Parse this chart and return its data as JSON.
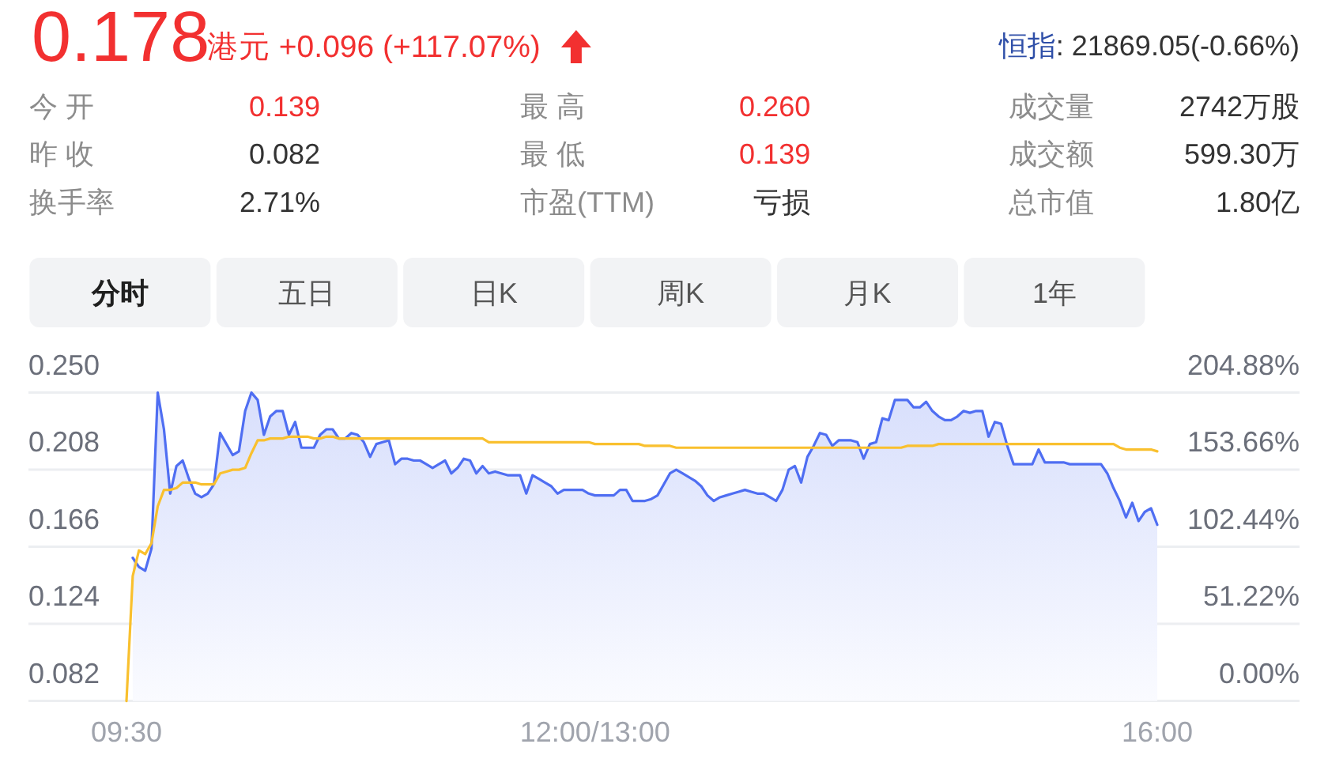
{
  "chart_data": {
    "type": "area",
    "title": "0.178",
    "subtitle": "港元 +0.096 (+117.07%)",
    "annotations": [
      "恒指",
      ": 21869.05(-0.66%)",
      "今 开",
      "0.139",
      "最 高",
      "0.260",
      "成交量",
      "2742万股",
      "昨 收",
      "0.082",
      "最 低",
      "0.139",
      "成交额",
      "599.30万",
      "换手率",
      "2.71%",
      "市盈(TTM)",
      "亏损",
      "总市值",
      "1.80亿",
      "分时",
      "五日",
      "日K",
      "周K",
      "月K",
      "1年"
    ],
    "categories": [
      "09:30",
      null,
      null,
      null,
      null,
      null,
      null,
      null,
      null,
      null,
      null,
      null,
      null,
      null,
      null,
      null,
      null,
      null,
      null,
      null,
      null,
      null,
      null,
      null,
      null,
      null,
      null,
      null,
      null,
      null,
      null,
      null,
      null,
      null,
      null,
      null,
      null,
      null,
      null,
      null,
      null,
      null,
      null,
      null,
      null,
      null,
      null,
      null,
      null,
      null,
      null,
      null,
      null,
      null,
      null,
      null,
      null,
      null,
      null,
      null,
      null,
      null,
      null,
      null,
      null,
      null,
      null,
      null,
      null,
      null,
      null,
      null,
      null,
      null,
      null,
      "12:00/13:00",
      null,
      null,
      null,
      null,
      null,
      null,
      null,
      null,
      null,
      null,
      null,
      null,
      null,
      null,
      null,
      null,
      null,
      null,
      null,
      null,
      null,
      null,
      null,
      null,
      null,
      null,
      null,
      null,
      null,
      null,
      null,
      null,
      null,
      null,
      null,
      null,
      null,
      null,
      null,
      null,
      null,
      null,
      null,
      null,
      null,
      null,
      null,
      null,
      null,
      null,
      null,
      null,
      null,
      null,
      null,
      null,
      null,
      null,
      null,
      null,
      null,
      null,
      null,
      null,
      null,
      null,
      null,
      null,
      null,
      null,
      null,
      null,
      null,
      null,
      null,
      null,
      null,
      null,
      null,
      null,
      null,
      null,
      null,
      null,
      null,
      null,
      null,
      null,
      null,
      "16:00"
    ],
    "ylim": [
      0.082,
      0.25
    ],
    "yticks": [
      {
        "value": 0.082,
        "label": "0.082"
      },
      {
        "value": 0.124,
        "label": "0.124"
      },
      {
        "value": 0.166,
        "label": "0.166"
      },
      {
        "value": 0.208,
        "label": "0.208"
      },
      {
        "value": 0.25,
        "label": "0.250"
      }
    ],
    "y2lim": [
      0,
      204.88
    ],
    "y2ticks": [
      {
        "value": 0,
        "label": "0.00%"
      },
      {
        "value": 51.22,
        "label": "51.22%"
      },
      {
        "value": 102.44,
        "label": "102.44%"
      },
      {
        "value": 153.66,
        "label": "153.66%"
      },
      {
        "value": 204.88,
        "label": "204.88%"
      }
    ],
    "grid": "y",
    "series": [
      {
        "color": "#4f6ef2",
        "values": [
          null,
          0.16,
          0.155,
          0.153,
          0.165,
          0.25,
          0.23,
          0.195,
          0.21,
          0.213,
          0.203,
          0.195,
          0.193,
          0.195,
          0.2,
          0.228,
          0.222,
          0.216,
          0.218,
          0.24,
          0.25,
          0.246,
          0.227,
          0.237,
          0.24,
          0.24,
          0.227,
          0.234,
          0.22,
          0.22,
          0.22,
          0.227,
          0.23,
          0.23,
          0.225,
          0.225,
          0.228,
          0.227,
          0.223,
          0.215,
          0.222,
          0.223,
          0.224,
          0.211,
          0.214,
          0.214,
          0.213,
          0.213,
          0.211,
          0.209,
          0.211,
          0.213,
          0.206,
          0.209,
          0.214,
          0.213,
          0.206,
          0.21,
          0.206,
          0.207,
          0.206,
          0.205,
          0.205,
          0.205,
          0.195,
          0.205,
          0.203,
          0.201,
          0.199,
          0.195,
          0.197,
          0.197,
          0.197,
          0.197,
          0.195,
          0.194,
          0.194,
          0.194,
          0.194,
          0.197,
          0.197,
          0.191,
          0.191,
          0.191,
          0.192,
          0.194,
          0.2,
          0.206,
          0.208,
          0.206,
          0.204,
          0.202,
          0.199,
          0.194,
          0.191,
          0.193,
          0.194,
          0.195,
          0.196,
          0.197,
          0.196,
          0.195,
          0.195,
          0.193,
          0.191,
          0.197,
          0.208,
          0.21,
          0.201,
          0.215,
          0.221,
          0.228,
          0.227,
          0.221,
          0.224,
          0.224,
          0.224,
          0.223,
          0.214,
          0.222,
          0.223,
          0.236,
          0.235,
          0.246,
          0.246,
          0.246,
          0.242,
          0.242,
          0.245,
          0.24,
          0.237,
          0.235,
          0.235,
          0.237,
          0.24,
          0.239,
          0.24,
          0.24,
          0.226,
          0.234,
          0.233,
          0.221,
          0.211,
          0.211,
          0.211,
          0.211,
          0.219,
          0.212,
          0.212,
          0.212,
          0.212,
          0.211,
          0.211,
          0.211,
          0.211,
          0.211,
          0.211,
          0.206,
          0.198,
          0.191,
          0.182,
          0.19,
          0.18,
          0.185,
          0.187,
          0.178
        ]
      },
      {
        "type": "line",
        "color": "#f9c02e",
        "values": [
          0.082,
          0.15,
          0.164,
          0.162,
          0.168,
          0.188,
          0.197,
          0.197,
          0.198,
          0.201,
          0.201,
          0.201,
          0.2,
          0.2,
          0.2,
          0.206,
          0.207,
          0.208,
          0.208,
          0.209,
          0.217,
          0.224,
          0.224,
          0.225,
          0.225,
          0.225,
          0.226,
          0.226,
          0.226,
          0.226,
          0.225,
          0.225,
          0.226,
          0.226,
          0.225,
          0.225,
          0.225,
          0.225,
          0.225,
          0.225,
          0.225,
          0.225,
          0.225,
          0.225,
          0.225,
          0.225,
          0.225,
          0.225,
          0.225,
          0.225,
          0.225,
          0.225,
          0.225,
          0.225,
          0.225,
          0.225,
          0.225,
          0.225,
          0.223,
          0.223,
          0.223,
          0.223,
          0.223,
          0.223,
          0.223,
          0.223,
          0.223,
          0.223,
          0.223,
          0.223,
          0.223,
          0.223,
          0.223,
          0.223,
          0.223,
          0.222,
          0.222,
          0.222,
          0.222,
          0.222,
          0.222,
          0.222,
          0.222,
          0.221,
          0.221,
          0.221,
          0.221,
          0.221,
          0.22,
          0.22,
          0.22,
          0.22,
          0.22,
          0.22,
          0.22,
          0.22,
          0.22,
          0.22,
          0.22,
          0.22,
          0.22,
          0.22,
          0.22,
          0.22,
          0.22,
          0.22,
          0.22,
          0.22,
          0.22,
          0.22,
          0.22,
          0.22,
          0.22,
          0.22,
          0.22,
          0.22,
          0.22,
          0.22,
          0.22,
          0.22,
          0.22,
          0.22,
          0.22,
          0.22,
          0.22,
          0.221,
          0.221,
          0.221,
          0.221,
          0.221,
          0.222,
          0.222,
          0.222,
          0.222,
          0.222,
          0.222,
          0.222,
          0.222,
          0.222,
          0.222,
          0.222,
          0.222,
          0.222,
          0.222,
          0.222,
          0.222,
          0.222,
          0.222,
          0.222,
          0.222,
          0.222,
          0.222,
          0.222,
          0.222,
          0.222,
          0.222,
          0.222,
          0.222,
          0.222,
          0.22,
          0.219,
          0.219,
          0.219,
          0.219,
          0.219,
          0.218
        ]
      }
    ]
  }
}
